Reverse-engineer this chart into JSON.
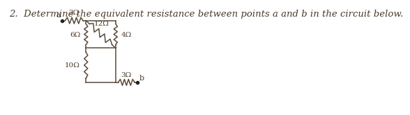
{
  "title": "2.  Determine the equivalent resistance between points a and b in the circuit below.",
  "title_fontsize": 9.5,
  "bg_color": "#ffffff",
  "line_color": "#5a4a3a",
  "text_color": "#4a3a2a",
  "node_color": "#222222",
  "R1_label": "2Ω",
  "R2_label": "6Ω",
  "R3_label": "12Ω",
  "R4_label": "4Ω",
  "R5_label": "10Ω",
  "R6_label": "3Ω",
  "xa": 2.8,
  "ya": 2.55,
  "xn1": 4.0,
  "yn1": 2.55,
  "xn3": 5.5,
  "yn3": 2.55,
  "xn2": 4.0,
  "yn2": 1.75,
  "xn4": 5.5,
  "yn4": 1.75,
  "xn5": 4.0,
  "yn5": 0.75,
  "xn6": 5.5,
  "yn6": 0.75,
  "xb": 6.6,
  "yb": 0.75
}
